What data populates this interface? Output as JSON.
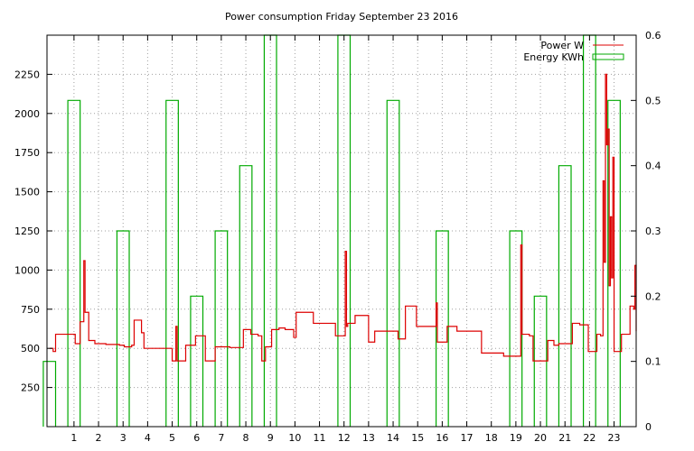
{
  "chart_data": {
    "type": "line",
    "title": "Power consumption Friday September 23 2016",
    "xlabel": "",
    "ylabel": "",
    "y2label": "",
    "xlim": [
      -0.1,
      23.9
    ],
    "ylim": [
      0,
      2500
    ],
    "y2lim": [
      0,
      0.6
    ],
    "xticks": [
      1,
      2,
      3,
      4,
      5,
      6,
      7,
      8,
      9,
      10,
      11,
      12,
      13,
      14,
      15,
      16,
      17,
      18,
      19,
      20,
      21,
      22,
      23
    ],
    "yticks": [
      250,
      500,
      750,
      1000,
      1250,
      1500,
      1750,
      2000,
      2250
    ],
    "y2ticks": [
      0,
      0.1,
      0.2,
      0.3,
      0.4,
      0.5,
      0.6
    ],
    "grid": true,
    "legend_position": "top-right",
    "colors": {
      "power": "#dd0000",
      "energy": "#00aa00",
      "grid": "#a0a0a0",
      "axis": "#000000"
    },
    "series": [
      {
        "name": "Power W",
        "axis": "y",
        "style": "step",
        "points": [
          [
            0,
            500
          ],
          [
            0.15,
            480
          ],
          [
            0.25,
            590
          ],
          [
            1.05,
            530
          ],
          [
            1.25,
            670
          ],
          [
            1.4,
            1060
          ],
          [
            1.45,
            730
          ],
          [
            1.6,
            550
          ],
          [
            1.85,
            530
          ],
          [
            2.3,
            525
          ],
          [
            2.85,
            520
          ],
          [
            3.05,
            510
          ],
          [
            3.35,
            520
          ],
          [
            3.45,
            680
          ],
          [
            3.75,
            600
          ],
          [
            3.85,
            500
          ],
          [
            4.5,
            500
          ],
          [
            4.85,
            500
          ],
          [
            5.0,
            420
          ],
          [
            5.15,
            640
          ],
          [
            5.2,
            420
          ],
          [
            5.55,
            520
          ],
          [
            5.95,
            580
          ],
          [
            6.35,
            420
          ],
          [
            6.75,
            510
          ],
          [
            7.0,
            510
          ],
          [
            7.35,
            505
          ],
          [
            7.75,
            505
          ],
          [
            7.9,
            620
          ],
          [
            8.2,
            590
          ],
          [
            8.5,
            580
          ],
          [
            8.65,
            420
          ],
          [
            8.8,
            510
          ],
          [
            9.05,
            620
          ],
          [
            9.35,
            630
          ],
          [
            9.6,
            620
          ],
          [
            9.95,
            570
          ],
          [
            10.05,
            730
          ],
          [
            10.75,
            660
          ],
          [
            11.5,
            660
          ],
          [
            11.65,
            580
          ],
          [
            12.05,
            1120
          ],
          [
            12.1,
            640
          ],
          [
            12.15,
            660
          ],
          [
            12.45,
            710
          ],
          [
            13.0,
            540
          ],
          [
            13.25,
            610
          ],
          [
            14.0,
            610
          ],
          [
            14.2,
            560
          ],
          [
            14.5,
            770
          ],
          [
            14.95,
            640
          ],
          [
            15.75,
            790
          ],
          [
            15.8,
            540
          ],
          [
            16.2,
            640
          ],
          [
            16.6,
            610
          ],
          [
            17.25,
            610
          ],
          [
            17.6,
            470
          ],
          [
            18.15,
            470
          ],
          [
            18.5,
            450
          ],
          [
            19.05,
            450
          ],
          [
            19.2,
            1160
          ],
          [
            19.25,
            590
          ],
          [
            19.55,
            580
          ],
          [
            19.7,
            420
          ],
          [
            20.3,
            550
          ],
          [
            20.55,
            520
          ],
          [
            20.75,
            530
          ],
          [
            21.3,
            660
          ],
          [
            21.6,
            650
          ],
          [
            21.95,
            480
          ],
          [
            22.3,
            590
          ],
          [
            22.45,
            580
          ],
          [
            22.55,
            1570
          ],
          [
            22.6,
            1050
          ],
          [
            22.65,
            2250
          ],
          [
            22.7,
            1800
          ],
          [
            22.75,
            1900
          ],
          [
            22.8,
            900
          ],
          [
            22.85,
            1340
          ],
          [
            22.9,
            950
          ],
          [
            22.95,
            1720
          ],
          [
            23.0,
            480
          ],
          [
            23.3,
            590
          ],
          [
            23.65,
            770
          ],
          [
            23.8,
            750
          ],
          [
            23.85,
            1030
          ],
          [
            23.9,
            610
          ]
        ]
      },
      {
        "name": "Energy KWh",
        "axis": "y2",
        "style": "histeps",
        "values": [
          0.1,
          0.5,
          0.0,
          0.3,
          0.0,
          0.5,
          0.2,
          0.3,
          0.4,
          0.6,
          0.0,
          0.0,
          0.6,
          0.0,
          0.5,
          0.0,
          0.3,
          0.0,
          0.0,
          0.3,
          0.2,
          0.4,
          0.6,
          0.5
        ]
      }
    ]
  }
}
